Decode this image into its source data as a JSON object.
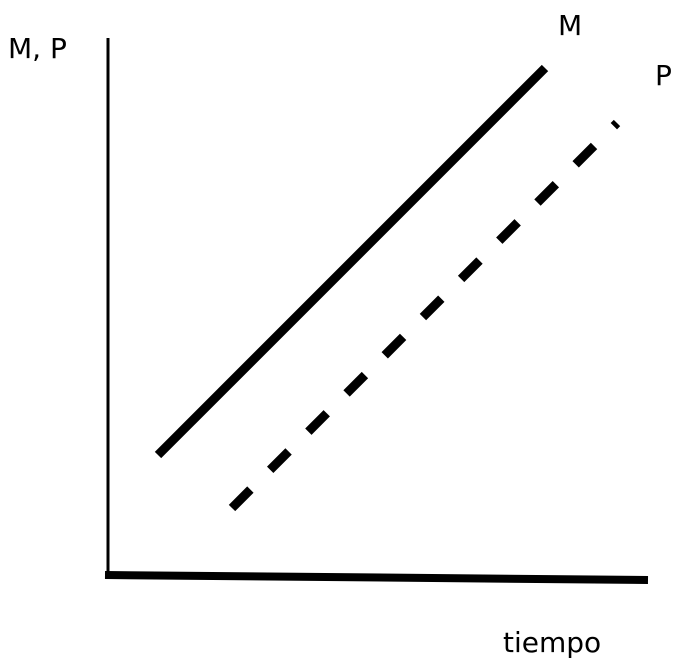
{
  "axes": {
    "y_label": "M, P",
    "x_label": "tiempo"
  },
  "lines": [
    {
      "label": "M"
    },
    {
      "label": "P"
    }
  ]
}
